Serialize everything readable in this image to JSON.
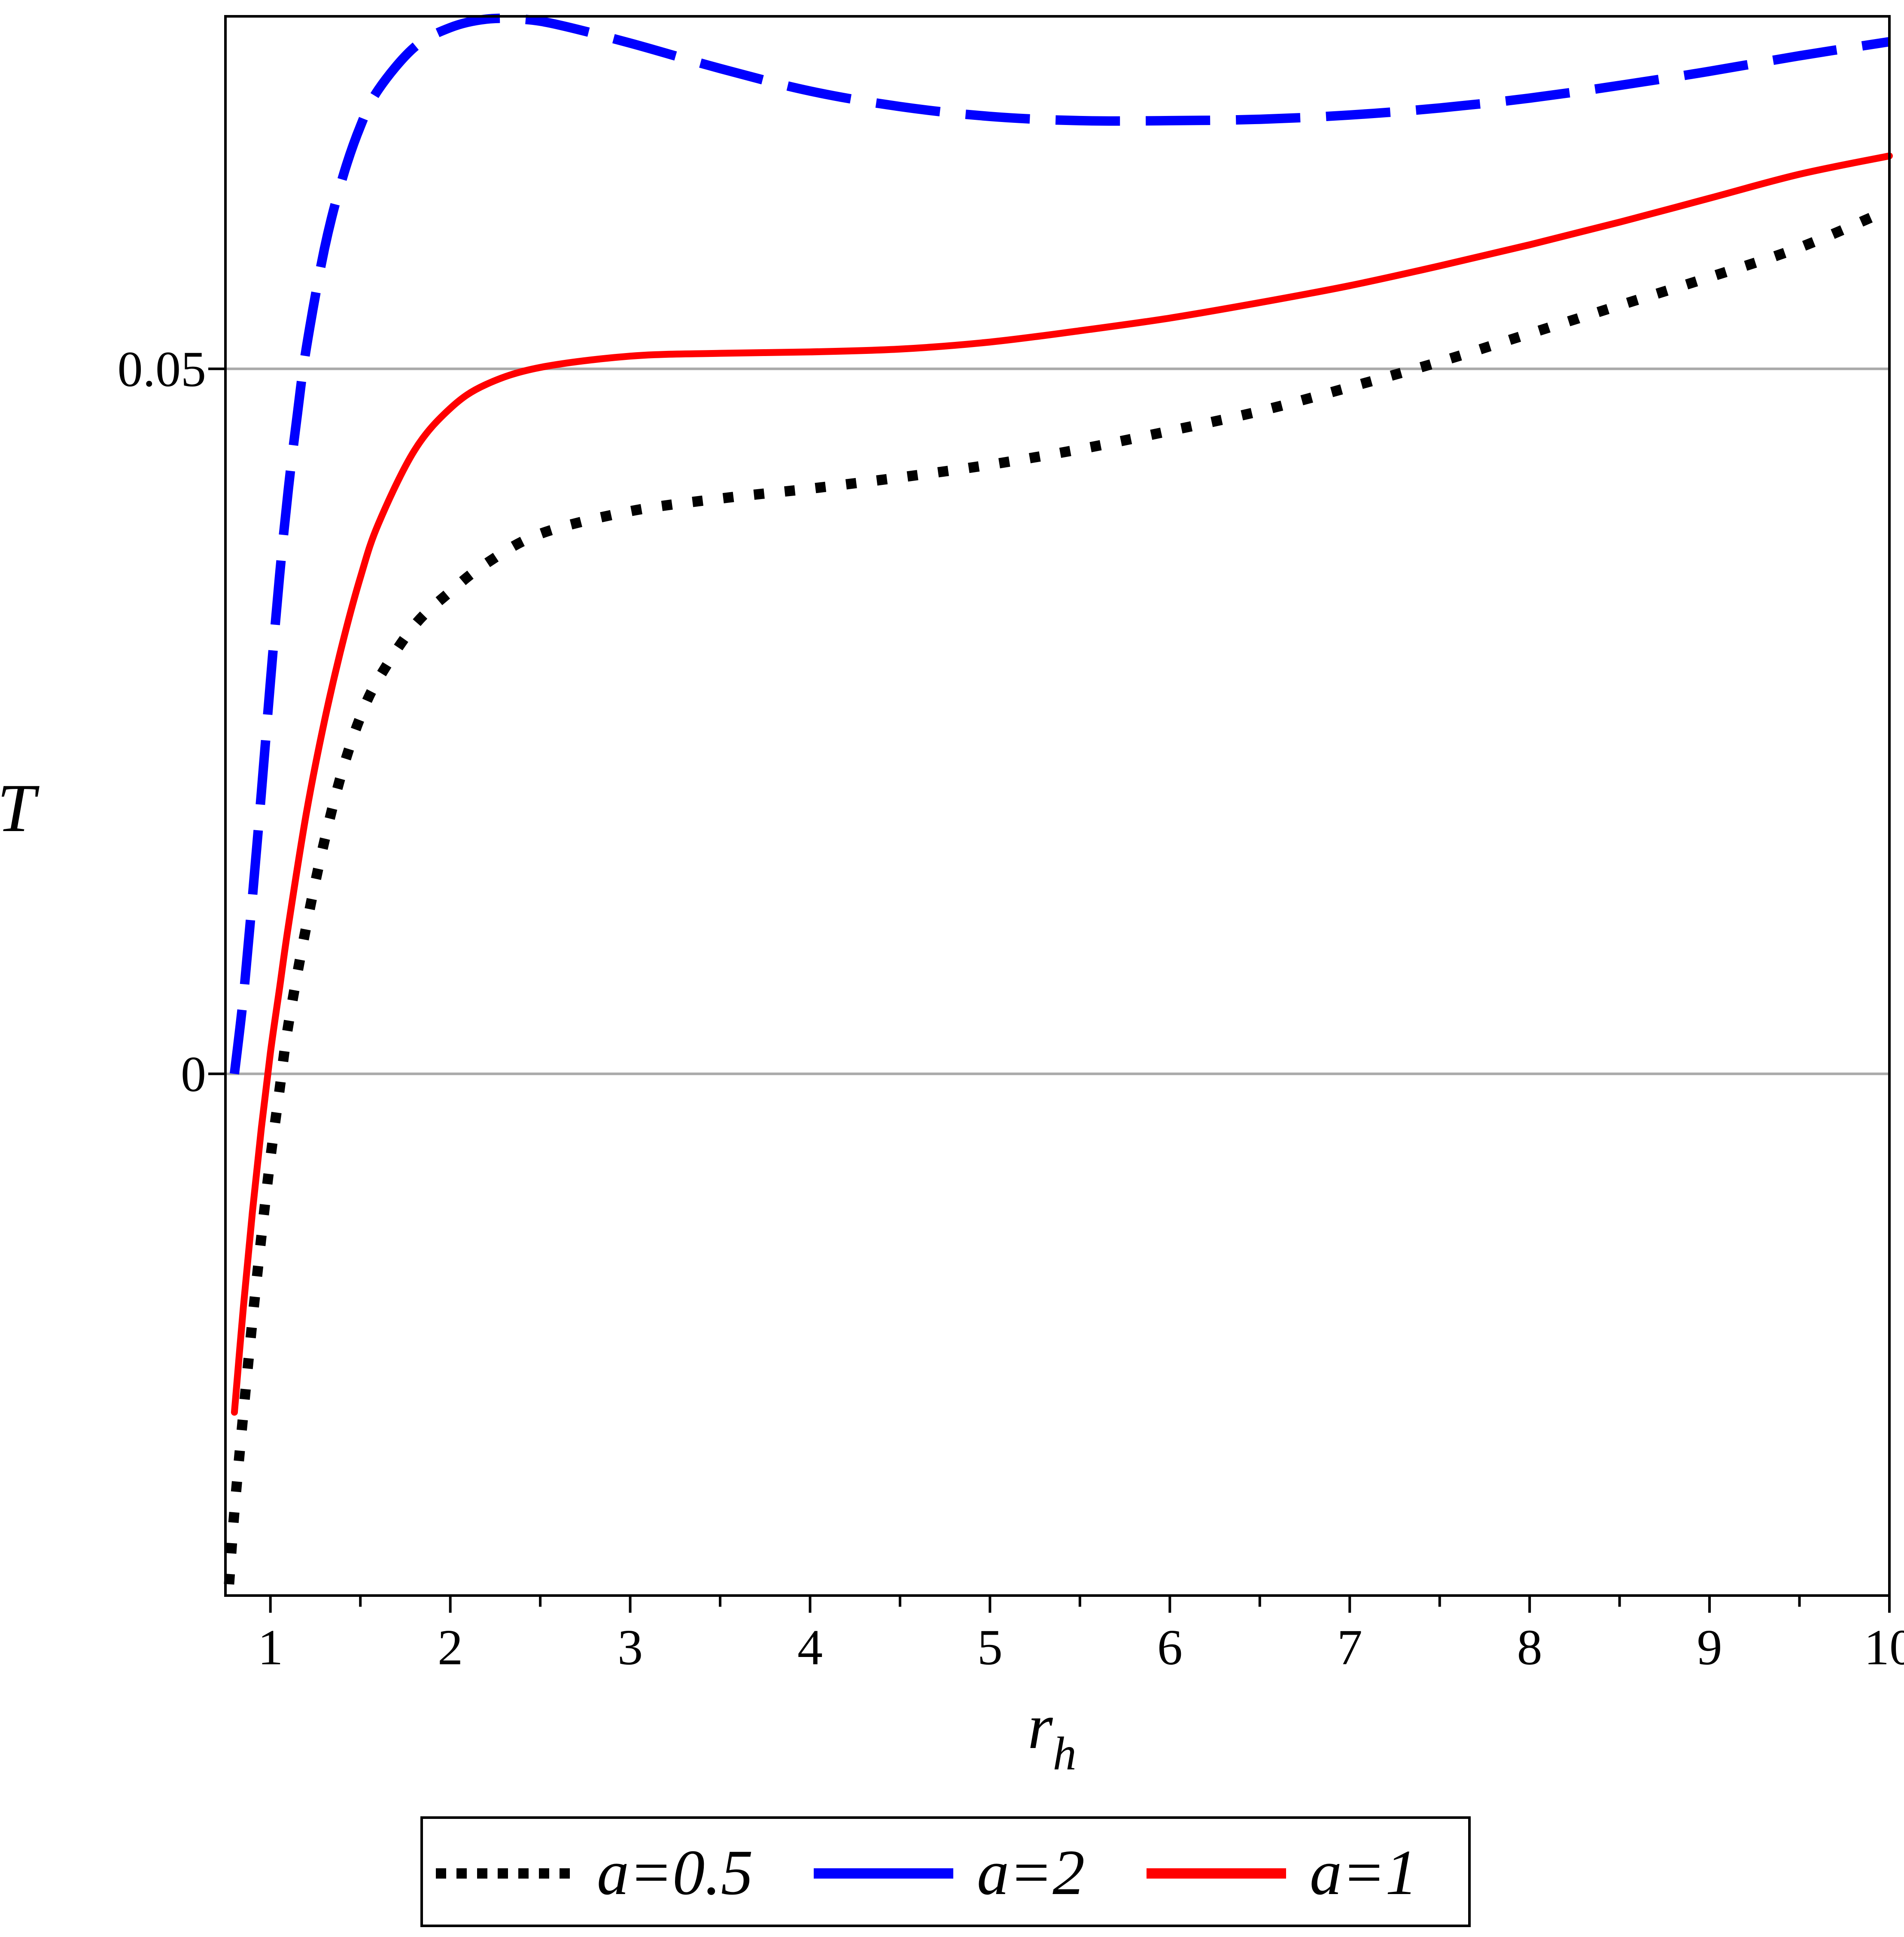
{
  "chart_data": {
    "type": "line",
    "xlabel": "r",
    "xlabel_subscript": "h",
    "ylabel": "T",
    "xlim": [
      0.75,
      10
    ],
    "ylim": [
      -0.037,
      0.075
    ],
    "x_ticks": [
      1,
      2,
      3,
      4,
      5,
      6,
      7,
      8,
      9,
      10
    ],
    "x_tick_labels": [
      "1",
      "2",
      "3",
      "4",
      "5",
      "6",
      "7",
      "8",
      "9",
      "10"
    ],
    "y_ticks": [
      0,
      0.05
    ],
    "y_tick_labels": [
      "0",
      "0.05"
    ],
    "grid": "horizontal lines at y ticks",
    "legend_position": "bottom",
    "series": [
      {
        "name": "a=0.5",
        "color": "#000000",
        "style": "dotted",
        "x": [
          0.77,
          0.8,
          0.85,
          0.9,
          0.95,
          1.0,
          1.05,
          1.1,
          1.2,
          1.3,
          1.4,
          1.5,
          1.6,
          1.8,
          2.0,
          2.2,
          2.5,
          3.0,
          3.5,
          4.0,
          4.5,
          5.0,
          5.5,
          6.0,
          6.5,
          7.0,
          7.5,
          8.0,
          8.5,
          9.0,
          9.5,
          10.0
        ],
        "y": [
          -0.0362,
          -0.031,
          -0.024,
          -0.0175,
          -0.0115,
          -0.006,
          -0.0012,
          0.0035,
          0.0105,
          0.0165,
          0.0215,
          0.0253,
          0.028,
          0.0318,
          0.0342,
          0.0362,
          0.0383,
          0.0399,
          0.0408,
          0.0415,
          0.0423,
          0.0432,
          0.0443,
          0.0456,
          0.047,
          0.0487,
          0.0505,
          0.0525,
          0.0545,
          0.0565,
          0.0586,
          0.0613
        ]
      },
      {
        "name": "a=2",
        "color": "#0000FF",
        "style": "dashed",
        "x": [
          0.8,
          0.85,
          0.9,
          0.95,
          1.0,
          1.05,
          1.1,
          1.15,
          1.2,
          1.3,
          1.4,
          1.5,
          1.6,
          1.8,
          2.0,
          2.2,
          2.4,
          2.6,
          3.0,
          3.5,
          4.0,
          4.5,
          5.0,
          5.5,
          6.0,
          6.5,
          7.0,
          7.5,
          8.0,
          8.5,
          9.0,
          9.5,
          10.0
        ],
        "y": [
          0.0,
          0.0055,
          0.0125,
          0.02,
          0.0278,
          0.0352,
          0.0415,
          0.0468,
          0.0515,
          0.0585,
          0.0635,
          0.0672,
          0.0698,
          0.0728,
          0.0742,
          0.0748,
          0.0748,
          0.0744,
          0.0731,
          0.0713,
          0.0697,
          0.0686,
          0.0679,
          0.0676,
          0.0676,
          0.0677,
          0.068,
          0.0685,
          0.0692,
          0.0701,
          0.0711,
          0.0722,
          0.0732
        ]
      },
      {
        "name": "a=1",
        "color": "#FF0000",
        "style": "solid",
        "x": [
          0.8,
          0.85,
          0.9,
          0.95,
          1.0,
          1.05,
          1.1,
          1.2,
          1.3,
          1.4,
          1.5,
          1.6,
          1.8,
          2.0,
          2.2,
          2.5,
          3.0,
          3.5,
          4.0,
          4.5,
          5.0,
          5.5,
          6.0,
          6.5,
          7.0,
          7.5,
          8.0,
          8.5,
          9.0,
          9.5,
          10.0
        ],
        "y": [
          -0.024,
          -0.0165,
          -0.0098,
          -0.0038,
          0.0015,
          0.006,
          0.0105,
          0.0185,
          0.025,
          0.0305,
          0.0352,
          0.039,
          0.0442,
          0.0472,
          0.0489,
          0.0501,
          0.0509,
          0.0511,
          0.0512,
          0.0514,
          0.0519,
          0.0527,
          0.0536,
          0.0547,
          0.0559,
          0.0573,
          0.0588,
          0.0604,
          0.0621,
          0.0638,
          0.0651
        ]
      }
    ]
  }
}
